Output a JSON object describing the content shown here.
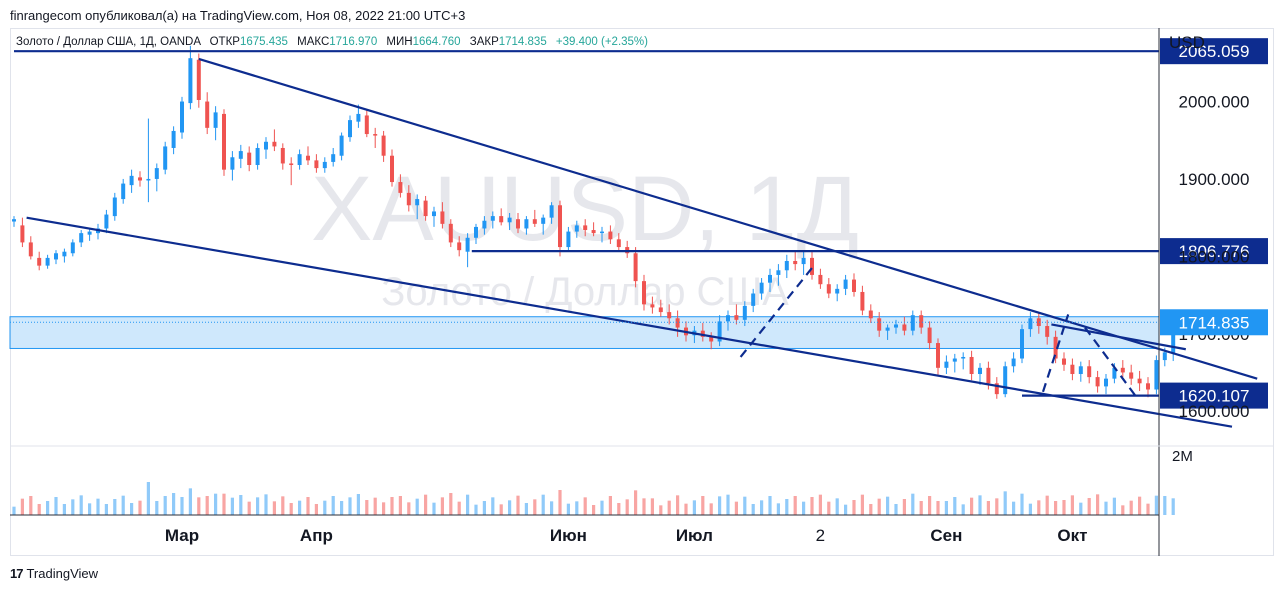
{
  "header": {
    "published": "finrangecom опубликовал(а) на TradingView.com, Ноя 08, 2022 21:00 UTC+3"
  },
  "symbol_bar": {
    "name": "Золото / Доллар США, 1Д, OANDA",
    "open_label": "ОТКР",
    "open": "1675.435",
    "high_label": "МАКС",
    "high": "1716.970",
    "low_label": "МИН",
    "low": "1664.760",
    "close_label": "ЗАКР",
    "close": "1714.835",
    "change": "+39.400 (+2.35%)"
  },
  "watermark": {
    "ticker": "XAUUSD, 1Д",
    "description": "Золото / Доллар США"
  },
  "footer": {
    "brand": "TradingView"
  },
  "colors": {
    "up": "#26a69a",
    "down": "#ef5350",
    "candle_up": "#2196f3",
    "candle_down": "#ef5350",
    "trend": "#0d2c8f",
    "zone": "#bbdefb",
    "price_tag": "#0d2c8f",
    "current_tag": "#2196f3"
  },
  "chart_data": {
    "type": "candlestick",
    "currency": "USD",
    "y_axis_ticks": [
      2000,
      1900,
      1800,
      1700,
      1600
    ],
    "y_axis_tick_labels": [
      "2000.000",
      "1900.000",
      "1800.000",
      "1700.000",
      "1600.000"
    ],
    "ylim": [
      1555,
      2095
    ],
    "x_axis_labels": [
      "Мар",
      "Апр",
      "Июн",
      "Июл",
      "2",
      "Сен",
      "Окт"
    ],
    "x_axis_label_days": [
      40,
      72,
      132,
      162,
      192,
      222,
      252
    ],
    "volume_axis_label": "2M",
    "horizontal_levels": [
      {
        "price": 2065.059,
        "label": "2065.059",
        "from_day": 0,
        "to_day": 300
      },
      {
        "price": 1806.776,
        "label": "1806.776",
        "from_day": 109,
        "to_day": 300
      },
      {
        "price": 1620.107,
        "label": "1620.107",
        "from_day": 240,
        "to_day": 300
      }
    ],
    "current_price": {
      "price": 1714.835,
      "label": "1714.835"
    },
    "support_zone": [
      1681,
      1722
    ],
    "trendlines": [
      {
        "from": [
          44,
          2055
        ],
        "to": [
          296,
          1642
        ]
      },
      {
        "from": [
          3,
          1850
        ],
        "to": [
          290,
          1580
        ]
      },
      {
        "from": [
          247,
          1712
        ],
        "to": [
          279,
          1680
        ]
      }
    ],
    "dashed_paths": [
      [
        [
          173,
          1670
        ],
        [
          190,
          1785
        ]
      ],
      [
        [
          245,
          1625
        ],
        [
          251,
          1725
        ]
      ],
      [
        [
          255,
          1708
        ],
        [
          267,
          1620
        ]
      ]
    ],
    "candles": [
      {
        "d": 0,
        "o": 1845,
        "h": 1852,
        "l": 1838,
        "c": 1848
      },
      {
        "d": 2,
        "o": 1840,
        "h": 1850,
        "l": 1812,
        "c": 1818
      },
      {
        "d": 4,
        "o": 1818,
        "h": 1826,
        "l": 1796,
        "c": 1800
      },
      {
        "d": 6,
        "o": 1798,
        "h": 1806,
        "l": 1782,
        "c": 1788
      },
      {
        "d": 8,
        "o": 1788,
        "h": 1802,
        "l": 1784,
        "c": 1798
      },
      {
        "d": 10,
        "o": 1796,
        "h": 1808,
        "l": 1790,
        "c": 1804
      },
      {
        "d": 12,
        "o": 1800,
        "h": 1810,
        "l": 1792,
        "c": 1806
      },
      {
        "d": 14,
        "o": 1804,
        "h": 1822,
        "l": 1800,
        "c": 1818
      },
      {
        "d": 16,
        "o": 1818,
        "h": 1834,
        "l": 1812,
        "c": 1830
      },
      {
        "d": 18,
        "o": 1828,
        "h": 1836,
        "l": 1820,
        "c": 1832
      },
      {
        "d": 20,
        "o": 1830,
        "h": 1842,
        "l": 1822,
        "c": 1836
      },
      {
        "d": 22,
        "o": 1836,
        "h": 1860,
        "l": 1830,
        "c": 1854
      },
      {
        "d": 24,
        "o": 1852,
        "h": 1882,
        "l": 1846,
        "c": 1876
      },
      {
        "d": 26,
        "o": 1874,
        "h": 1900,
        "l": 1868,
        "c": 1894
      },
      {
        "d": 28,
        "o": 1892,
        "h": 1912,
        "l": 1882,
        "c": 1904
      },
      {
        "d": 30,
        "o": 1902,
        "h": 1910,
        "l": 1890,
        "c": 1898
      },
      {
        "d": 32,
        "o": 1898,
        "h": 1978,
        "l": 1870,
        "c": 1900
      },
      {
        "d": 34,
        "o": 1900,
        "h": 1920,
        "l": 1884,
        "c": 1914
      },
      {
        "d": 36,
        "o": 1912,
        "h": 1948,
        "l": 1906,
        "c": 1942
      },
      {
        "d": 38,
        "o": 1940,
        "h": 1968,
        "l": 1932,
        "c": 1962
      },
      {
        "d": 40,
        "o": 1960,
        "h": 2006,
        "l": 1952,
        "c": 2000
      },
      {
        "d": 42,
        "o": 1998,
        "h": 2072,
        "l": 1990,
        "c": 2056
      },
      {
        "d": 44,
        "o": 2054,
        "h": 2062,
        "l": 1992,
        "c": 2002
      },
      {
        "d": 46,
        "o": 2000,
        "h": 2012,
        "l": 1958,
        "c": 1966
      },
      {
        "d": 48,
        "o": 1966,
        "h": 1994,
        "l": 1950,
        "c": 1986
      },
      {
        "d": 50,
        "o": 1984,
        "h": 1990,
        "l": 1904,
        "c": 1912
      },
      {
        "d": 52,
        "o": 1912,
        "h": 1936,
        "l": 1898,
        "c": 1928
      },
      {
        "d": 54,
        "o": 1926,
        "h": 1944,
        "l": 1914,
        "c": 1936
      },
      {
        "d": 56,
        "o": 1934,
        "h": 1942,
        "l": 1910,
        "c": 1918
      },
      {
        "d": 58,
        "o": 1918,
        "h": 1946,
        "l": 1912,
        "c": 1940
      },
      {
        "d": 60,
        "o": 1938,
        "h": 1954,
        "l": 1926,
        "c": 1948
      },
      {
        "d": 62,
        "o": 1948,
        "h": 1964,
        "l": 1936,
        "c": 1942
      },
      {
        "d": 64,
        "o": 1940,
        "h": 1946,
        "l": 1912,
        "c": 1920
      },
      {
        "d": 66,
        "o": 1920,
        "h": 1928,
        "l": 1892,
        "c": 1918
      },
      {
        "d": 68,
        "o": 1918,
        "h": 1938,
        "l": 1912,
        "c": 1932
      },
      {
        "d": 70,
        "o": 1930,
        "h": 1942,
        "l": 1918,
        "c": 1924
      },
      {
        "d": 72,
        "o": 1924,
        "h": 1932,
        "l": 1908,
        "c": 1914
      },
      {
        "d": 74,
        "o": 1914,
        "h": 1928,
        "l": 1908,
        "c": 1922
      },
      {
        "d": 76,
        "o": 1922,
        "h": 1940,
        "l": 1916,
        "c": 1932
      },
      {
        "d": 78,
        "o": 1930,
        "h": 1960,
        "l": 1924,
        "c": 1956
      },
      {
        "d": 80,
        "o": 1954,
        "h": 1982,
        "l": 1948,
        "c": 1976
      },
      {
        "d": 82,
        "o": 1974,
        "h": 1996,
        "l": 1966,
        "c": 1984
      },
      {
        "d": 84,
        "o": 1982,
        "h": 1990,
        "l": 1954,
        "c": 1958
      },
      {
        "d": 86,
        "o": 1958,
        "h": 1966,
        "l": 1940,
        "c": 1956
      },
      {
        "d": 88,
        "o": 1956,
        "h": 1962,
        "l": 1922,
        "c": 1930
      },
      {
        "d": 90,
        "o": 1930,
        "h": 1938,
        "l": 1890,
        "c": 1896
      },
      {
        "d": 92,
        "o": 1896,
        "h": 1906,
        "l": 1876,
        "c": 1882
      },
      {
        "d": 94,
        "o": 1882,
        "h": 1892,
        "l": 1858,
        "c": 1866
      },
      {
        "d": 96,
        "o": 1866,
        "h": 1880,
        "l": 1848,
        "c": 1874
      },
      {
        "d": 98,
        "o": 1872,
        "h": 1878,
        "l": 1846,
        "c": 1852
      },
      {
        "d": 100,
        "o": 1852,
        "h": 1864,
        "l": 1838,
        "c": 1858
      },
      {
        "d": 102,
        "o": 1858,
        "h": 1870,
        "l": 1836,
        "c": 1842
      },
      {
        "d": 104,
        "o": 1842,
        "h": 1848,
        "l": 1812,
        "c": 1818
      },
      {
        "d": 106,
        "o": 1818,
        "h": 1826,
        "l": 1800,
        "c": 1808
      },
      {
        "d": 108,
        "o": 1806,
        "h": 1830,
        "l": 1786,
        "c": 1824
      },
      {
        "d": 110,
        "o": 1824,
        "h": 1842,
        "l": 1816,
        "c": 1838
      },
      {
        "d": 112,
        "o": 1836,
        "h": 1852,
        "l": 1828,
        "c": 1846
      },
      {
        "d": 114,
        "o": 1846,
        "h": 1858,
        "l": 1836,
        "c": 1852
      },
      {
        "d": 116,
        "o": 1852,
        "h": 1862,
        "l": 1840,
        "c": 1844
      },
      {
        "d": 118,
        "o": 1844,
        "h": 1856,
        "l": 1834,
        "c": 1850
      },
      {
        "d": 120,
        "o": 1848,
        "h": 1856,
        "l": 1830,
        "c": 1836
      },
      {
        "d": 122,
        "o": 1836,
        "h": 1852,
        "l": 1828,
        "c": 1848
      },
      {
        "d": 124,
        "o": 1848,
        "h": 1860,
        "l": 1838,
        "c": 1842
      },
      {
        "d": 126,
        "o": 1842,
        "h": 1854,
        "l": 1828,
        "c": 1850
      },
      {
        "d": 128,
        "o": 1850,
        "h": 1870,
        "l": 1842,
        "c": 1866
      },
      {
        "d": 130,
        "o": 1866,
        "h": 1872,
        "l": 1800,
        "c": 1812
      },
      {
        "d": 132,
        "o": 1812,
        "h": 1838,
        "l": 1806,
        "c": 1832
      },
      {
        "d": 134,
        "o": 1832,
        "h": 1846,
        "l": 1824,
        "c": 1840
      },
      {
        "d": 136,
        "o": 1840,
        "h": 1848,
        "l": 1826,
        "c": 1834
      },
      {
        "d": 138,
        "o": 1834,
        "h": 1844,
        "l": 1826,
        "c": 1830
      },
      {
        "d": 140,
        "o": 1830,
        "h": 1838,
        "l": 1818,
        "c": 1832
      },
      {
        "d": 142,
        "o": 1832,
        "h": 1840,
        "l": 1816,
        "c": 1822
      },
      {
        "d": 144,
        "o": 1822,
        "h": 1830,
        "l": 1806,
        "c": 1812
      },
      {
        "d": 146,
        "o": 1812,
        "h": 1820,
        "l": 1798,
        "c": 1804
      },
      {
        "d": 148,
        "o": 1804,
        "h": 1812,
        "l": 1760,
        "c": 1768
      },
      {
        "d": 150,
        "o": 1768,
        "h": 1776,
        "l": 1730,
        "c": 1738
      },
      {
        "d": 152,
        "o": 1738,
        "h": 1748,
        "l": 1726,
        "c": 1734
      },
      {
        "d": 154,
        "o": 1734,
        "h": 1744,
        "l": 1722,
        "c": 1728
      },
      {
        "d": 156,
        "o": 1728,
        "h": 1738,
        "l": 1712,
        "c": 1720
      },
      {
        "d": 158,
        "o": 1720,
        "h": 1730,
        "l": 1696,
        "c": 1708
      },
      {
        "d": 160,
        "o": 1708,
        "h": 1716,
        "l": 1690,
        "c": 1698
      },
      {
        "d": 162,
        "o": 1698,
        "h": 1710,
        "l": 1688,
        "c": 1704
      },
      {
        "d": 164,
        "o": 1704,
        "h": 1714,
        "l": 1690,
        "c": 1696
      },
      {
        "d": 166,
        "o": 1696,
        "h": 1702,
        "l": 1680,
        "c": 1690
      },
      {
        "d": 168,
        "o": 1690,
        "h": 1724,
        "l": 1684,
        "c": 1716
      },
      {
        "d": 170,
        "o": 1716,
        "h": 1730,
        "l": 1704,
        "c": 1724
      },
      {
        "d": 172,
        "o": 1724,
        "h": 1738,
        "l": 1712,
        "c": 1718
      },
      {
        "d": 174,
        "o": 1718,
        "h": 1742,
        "l": 1710,
        "c": 1736
      },
      {
        "d": 176,
        "o": 1736,
        "h": 1758,
        "l": 1728,
        "c": 1752
      },
      {
        "d": 178,
        "o": 1752,
        "h": 1772,
        "l": 1744,
        "c": 1766
      },
      {
        "d": 180,
        "o": 1766,
        "h": 1784,
        "l": 1754,
        "c": 1776
      },
      {
        "d": 182,
        "o": 1776,
        "h": 1790,
        "l": 1762,
        "c": 1782
      },
      {
        "d": 184,
        "o": 1782,
        "h": 1802,
        "l": 1772,
        "c": 1794
      },
      {
        "d": 186,
        "o": 1794,
        "h": 1806,
        "l": 1782,
        "c": 1790
      },
      {
        "d": 188,
        "o": 1790,
        "h": 1808,
        "l": 1776,
        "c": 1798
      },
      {
        "d": 190,
        "o": 1798,
        "h": 1806,
        "l": 1770,
        "c": 1776
      },
      {
        "d": 192,
        "o": 1776,
        "h": 1784,
        "l": 1758,
        "c": 1764
      },
      {
        "d": 194,
        "o": 1764,
        "h": 1772,
        "l": 1746,
        "c": 1752
      },
      {
        "d": 196,
        "o": 1752,
        "h": 1764,
        "l": 1742,
        "c": 1758
      },
      {
        "d": 198,
        "o": 1758,
        "h": 1776,
        "l": 1750,
        "c": 1770
      },
      {
        "d": 200,
        "o": 1770,
        "h": 1778,
        "l": 1748,
        "c": 1754
      },
      {
        "d": 202,
        "o": 1754,
        "h": 1762,
        "l": 1724,
        "c": 1730
      },
      {
        "d": 204,
        "o": 1730,
        "h": 1738,
        "l": 1714,
        "c": 1720
      },
      {
        "d": 206,
        "o": 1720,
        "h": 1728,
        "l": 1696,
        "c": 1704
      },
      {
        "d": 208,
        "o": 1704,
        "h": 1712,
        "l": 1692,
        "c": 1708
      },
      {
        "d": 210,
        "o": 1708,
        "h": 1718,
        "l": 1700,
        "c": 1712
      },
      {
        "d": 212,
        "o": 1712,
        "h": 1722,
        "l": 1698,
        "c": 1704
      },
      {
        "d": 214,
        "o": 1704,
        "h": 1730,
        "l": 1698,
        "c": 1724
      },
      {
        "d": 216,
        "o": 1724,
        "h": 1730,
        "l": 1700,
        "c": 1708
      },
      {
        "d": 218,
        "o": 1708,
        "h": 1716,
        "l": 1680,
        "c": 1688
      },
      {
        "d": 220,
        "o": 1688,
        "h": 1694,
        "l": 1646,
        "c": 1656
      },
      {
        "d": 222,
        "o": 1656,
        "h": 1672,
        "l": 1648,
        "c": 1664
      },
      {
        "d": 224,
        "o": 1664,
        "h": 1674,
        "l": 1650,
        "c": 1668
      },
      {
        "d": 226,
        "o": 1668,
        "h": 1676,
        "l": 1654,
        "c": 1670
      },
      {
        "d": 228,
        "o": 1670,
        "h": 1678,
        "l": 1640,
        "c": 1648
      },
      {
        "d": 230,
        "o": 1648,
        "h": 1662,
        "l": 1634,
        "c": 1656
      },
      {
        "d": 232,
        "o": 1656,
        "h": 1664,
        "l": 1628,
        "c": 1636
      },
      {
        "d": 234,
        "o": 1636,
        "h": 1644,
        "l": 1616,
        "c": 1622
      },
      {
        "d": 236,
        "o": 1622,
        "h": 1664,
        "l": 1618,
        "c": 1658
      },
      {
        "d": 238,
        "o": 1658,
        "h": 1676,
        "l": 1650,
        "c": 1668
      },
      {
        "d": 240,
        "o": 1668,
        "h": 1712,
        "l": 1662,
        "c": 1706
      },
      {
        "d": 242,
        "o": 1706,
        "h": 1728,
        "l": 1696,
        "c": 1720
      },
      {
        "d": 244,
        "o": 1720,
        "h": 1728,
        "l": 1700,
        "c": 1710
      },
      {
        "d": 246,
        "o": 1710,
        "h": 1718,
        "l": 1686,
        "c": 1696
      },
      {
        "d": 248,
        "o": 1696,
        "h": 1704,
        "l": 1662,
        "c": 1668
      },
      {
        "d": 250,
        "o": 1668,
        "h": 1676,
        "l": 1652,
        "c": 1660
      },
      {
        "d": 252,
        "o": 1660,
        "h": 1668,
        "l": 1640,
        "c": 1648
      },
      {
        "d": 254,
        "o": 1648,
        "h": 1664,
        "l": 1638,
        "c": 1658
      },
      {
        "d": 256,
        "o": 1658,
        "h": 1666,
        "l": 1636,
        "c": 1644
      },
      {
        "d": 258,
        "o": 1644,
        "h": 1652,
        "l": 1624,
        "c": 1632
      },
      {
        "d": 260,
        "o": 1632,
        "h": 1648,
        "l": 1622,
        "c": 1642
      },
      {
        "d": 262,
        "o": 1642,
        "h": 1662,
        "l": 1636,
        "c": 1656
      },
      {
        "d": 264,
        "o": 1656,
        "h": 1666,
        "l": 1644,
        "c": 1650
      },
      {
        "d": 266,
        "o": 1650,
        "h": 1660,
        "l": 1634,
        "c": 1642
      },
      {
        "d": 268,
        "o": 1642,
        "h": 1652,
        "l": 1626,
        "c": 1636
      },
      {
        "d": 270,
        "o": 1636,
        "h": 1644,
        "l": 1618,
        "c": 1628
      },
      {
        "d": 272,
        "o": 1628,
        "h": 1672,
        "l": 1622,
        "c": 1666
      },
      {
        "d": 274,
        "o": 1666,
        "h": 1682,
        "l": 1658,
        "c": 1676
      },
      {
        "d": 276,
        "o": 1675.435,
        "h": 1716.97,
        "l": 1664.76,
        "c": 1714.835
      }
    ]
  }
}
